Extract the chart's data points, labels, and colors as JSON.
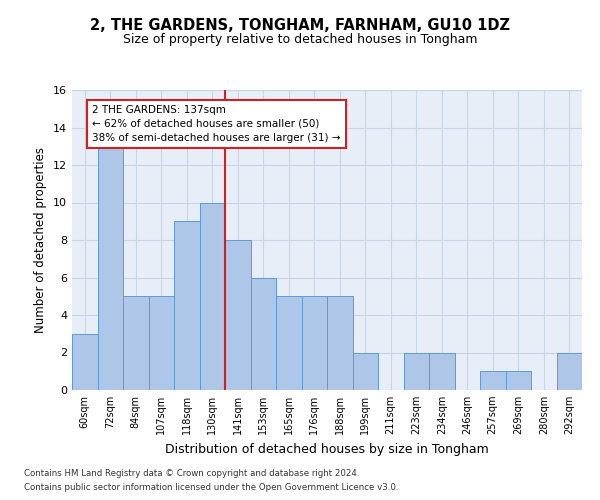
{
  "title": "2, THE GARDENS, TONGHAM, FARNHAM, GU10 1DZ",
  "subtitle": "Size of property relative to detached houses in Tongham",
  "xlabel": "Distribution of detached houses by size in Tongham",
  "ylabel": "Number of detached properties",
  "categories": [
    "60sqm",
    "72sqm",
    "84sqm",
    "107sqm",
    "118sqm",
    "130sqm",
    "141sqm",
    "153sqm",
    "165sqm",
    "176sqm",
    "188sqm",
    "199sqm",
    "211sqm",
    "223sqm",
    "234sqm",
    "246sqm",
    "257sqm",
    "269sqm",
    "280sqm",
    "292sqm"
  ],
  "values": [
    3,
    13,
    5,
    5,
    9,
    10,
    8,
    6,
    5,
    5,
    5,
    2,
    0,
    2,
    2,
    0,
    1,
    1,
    0,
    2
  ],
  "bar_color": "#aec6e8",
  "bar_edge_color": "#5b9bd5",
  "reference_line_index": 6,
  "reference_line_color": "#cc2222",
  "annotation_text": "2 THE GARDENS: 137sqm\n← 62% of detached houses are smaller (50)\n38% of semi-detached houses are larger (31) →",
  "annotation_box_color": "#cc2222",
  "ylim": [
    0,
    16
  ],
  "yticks": [
    0,
    2,
    4,
    6,
    8,
    10,
    12,
    14,
    16
  ],
  "grid_color": "#c8d4e8",
  "background_color": "#e8eef8",
  "footer_line1": "Contains HM Land Registry data © Crown copyright and database right 2024.",
  "footer_line2": "Contains public sector information licensed under the Open Government Licence v3.0.",
  "title_fontsize": 10.5,
  "subtitle_fontsize": 9,
  "annotation_fontsize": 7.5,
  "ylabel_fontsize": 8.5,
  "xlabel_fontsize": 9,
  "tick_fontsize": 7,
  "ytick_fontsize": 8
}
